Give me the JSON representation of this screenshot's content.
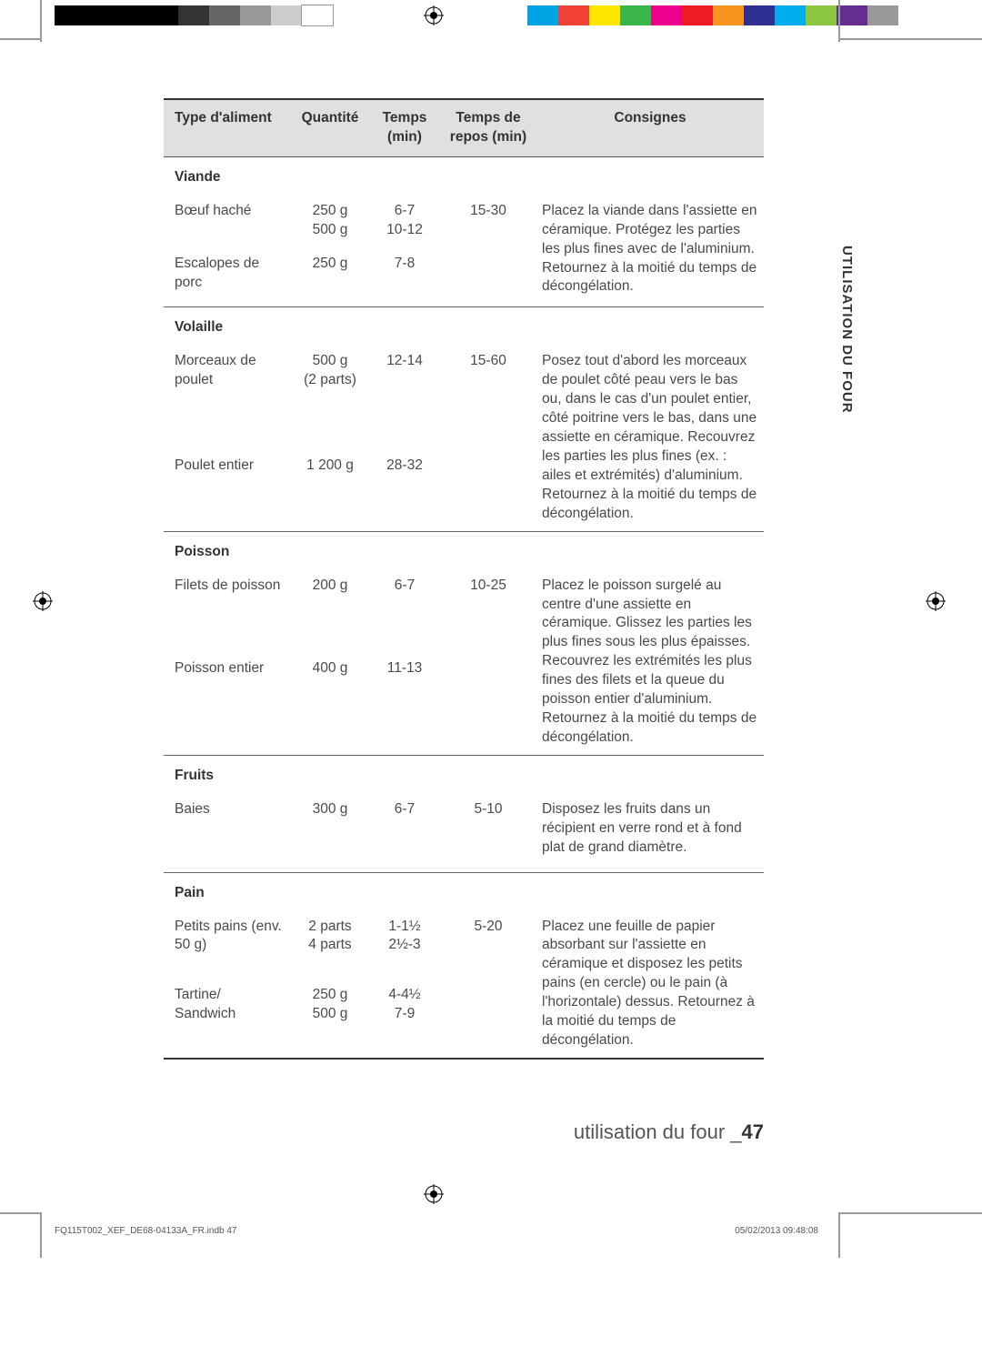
{
  "print_marks": {
    "left_colors": [
      "#000000",
      "#000000",
      "#000000",
      "#000000",
      "#333333",
      "#666666",
      "#999999",
      "#cccccc",
      "#ffffff"
    ],
    "right_colors": [
      "#00a4e4",
      "#ef4136",
      "#ffe600",
      "#39b54a",
      "#ec008c",
      "#ed1c24",
      "#f7941e",
      "#2e3192",
      "#00aeef",
      "#8dc63f",
      "#662d91",
      "#999999"
    ]
  },
  "side_tab": "UTILISATION DU FOUR",
  "table": {
    "headers": [
      "Type d'aliment",
      "Quantité",
      "Temps (min)",
      "Temps de repos (min)",
      "Consignes"
    ],
    "sections": [
      {
        "title": "Viande",
        "rows": [
          {
            "food": "Bœuf haché",
            "qty": "250 g\n500 g",
            "time": "6-7\n10-12",
            "rest": "15-30"
          },
          {
            "food": "Escalopes de porc",
            "qty": "250 g",
            "time": "7-8",
            "rest": ""
          }
        ],
        "instructions": "Placez la viande dans l'assiette en céramique. Protégez les parties les plus fines avec de l'aluminium. Retournez à la moitié du temps de décongélation."
      },
      {
        "title": "Volaille",
        "rows": [
          {
            "food": "Morceaux de poulet",
            "qty": "500 g\n(2 parts)",
            "time": "12-14",
            "rest": "15-60"
          },
          {
            "food": "Poulet entier",
            "qty": "1 200 g",
            "time": "28-32",
            "rest": ""
          }
        ],
        "instructions": "Posez tout d'abord les morceaux de poulet côté peau vers le bas ou, dans le cas d'un poulet entier, côté poitrine vers le bas, dans une assiette en céramique. Recouvrez les parties les plus fines (ex. : ailes et extrémités) d'aluminium. Retournez à la moitié du temps de décongélation."
      },
      {
        "title": "Poisson",
        "rows": [
          {
            "food": "Filets de poisson",
            "qty": "200 g",
            "time": "6-7",
            "rest": "10-25"
          },
          {
            "food": "Poisson entier",
            "qty": "400 g",
            "time": "11-13",
            "rest": ""
          }
        ],
        "instructions": "Placez le poisson surgelé au centre d'une assiette en céramique. Glissez les parties les plus fines sous les plus épaisses. Recouvrez les extrémités les plus fines des filets et la queue du poisson entier d'aluminium. Retournez à la moitié du temps de décongélation."
      },
      {
        "title": "Fruits",
        "rows": [
          {
            "food": "Baies",
            "qty": "300 g",
            "time": "6-7",
            "rest": "5-10"
          }
        ],
        "instructions": "Disposez les fruits dans un récipient en verre rond et à fond plat de grand diamètre."
      },
      {
        "title": "Pain",
        "rows": [
          {
            "food": "Petits pains (env. 50 g)",
            "qty": "2 parts\n4 parts",
            "time": "1-1½\n2½-3",
            "rest": "5-20"
          },
          {
            "food": "Tartine/\nSandwich",
            "qty": "250 g\n500 g",
            "time": "4-4½\n7-9",
            "rest": ""
          }
        ],
        "instructions": "Placez une feuille de papier absorbant sur l'assiette en céramique et disposez les petits pains (en cercle) ou le pain (à l'horizontale) dessus. Retournez à la moitié du temps de décongélation."
      }
    ]
  },
  "footer": {
    "title_prefix": "utilisation du four _",
    "page_number": "47"
  },
  "imprint": {
    "file": "FQ115T002_XEF_DE68-04133A_FR.indb   47",
    "stamp": "05/02/2013   09:48:08"
  }
}
